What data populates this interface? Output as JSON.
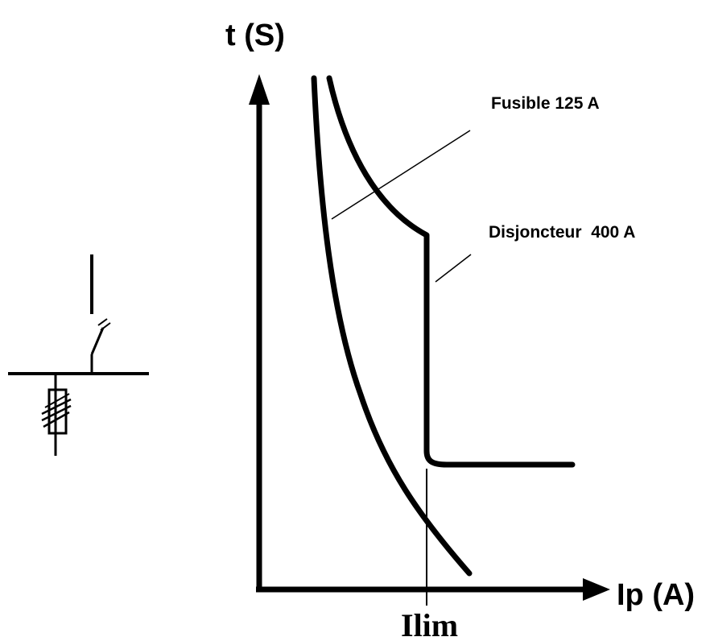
{
  "axes": {
    "y_label": "t (S)",
    "x_label": "Ip (A)",
    "x_marker": "Ilim"
  },
  "curves": [
    {
      "id": "fuse",
      "label": "Fusible 125 A"
    },
    {
      "id": "breaker",
      "label": "Disjoncteur  400 A"
    }
  ],
  "colors": {
    "ink": "#000000",
    "background": "#ffffff"
  }
}
